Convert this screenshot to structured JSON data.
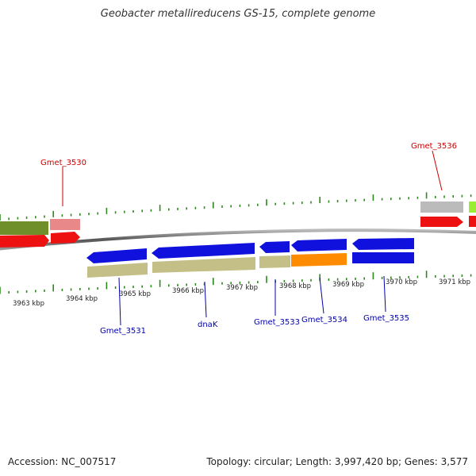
{
  "title": "Geobacter metallireducens GS-15, complete genome",
  "footer": {
    "accession": "Accession: NC_007517",
    "summary": "Topology: circular; Length: 3,997,420 bp; Genes: 3,577"
  },
  "gene_labels": {
    "top": [
      "Gmet_3530",
      "Gmet_3536"
    ],
    "bottom": [
      "Gmet_3531",
      "dnaK",
      "Gmet_3533",
      "Gmet_3534",
      "Gmet_3535"
    ]
  },
  "scale_ticks": [
    "3963 kbp",
    "3964 kbp",
    "3965 kbp",
    "3966 kbp",
    "3967 kbp",
    "3968 kbp",
    "3969 kbp",
    "3970 kbp",
    "3971 kbp"
  ],
  "colors": {
    "backbone": "#777777",
    "tick": "#2a8a1a",
    "top_label": "#cc0000",
    "bottom_label": "#0000aa",
    "blue": "#1111dd",
    "red": "#ee1111",
    "olive": "#6f8f2a",
    "pink": "#e88888",
    "khaki": "#c4bf86",
    "orange": "#ff8c00",
    "grey": "#bbbbbb",
    "lime": "#99ee33"
  }
}
